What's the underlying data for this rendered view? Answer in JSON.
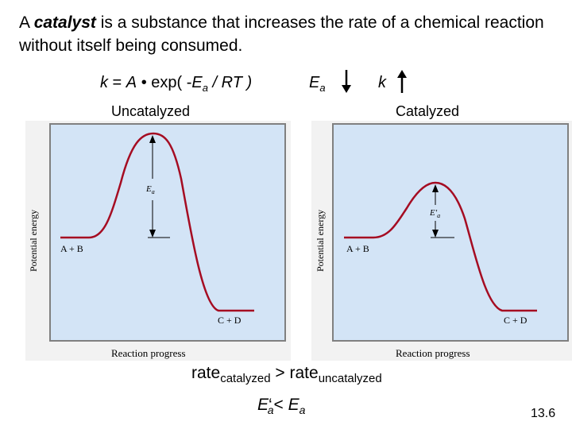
{
  "intro": {
    "prefix": "A ",
    "term": "catalyst",
    "suffix": " is a substance that increases the rate of a chemical reaction without itself being consumed."
  },
  "formula": {
    "lhs": "k",
    "eq": " = ",
    "a": "A",
    "dot": " • ",
    "exp_open": "exp( -",
    "e": "E",
    "e_sub": "a",
    "rest": " / RT )"
  },
  "trend": {
    "ea": "E",
    "ea_sub": "a",
    "ea_direction": "down-arrow",
    "k": "k",
    "k_direction": "up-arrow"
  },
  "panels": {
    "uncatalyzed": {
      "title": "Uncatalyzed",
      "y_axis": "Potential energy",
      "x_axis": "Reaction progress",
      "reactants": "A + B",
      "products": "C + D",
      "barrier_label": "E",
      "barrier_sub": "a"
    },
    "catalyzed": {
      "title": "Catalyzed",
      "y_axis": "Potential energy",
      "x_axis": "Reaction progress",
      "reactants": "A + B",
      "products": "C + D",
      "barrier_label": "E′",
      "barrier_sub": "a"
    }
  },
  "rate_comparison": {
    "left": "rate",
    "left_sub": "catalyzed",
    "op": " > ",
    "right": "rate",
    "right_sub": "uncatalyzed"
  },
  "ea_comparison": {
    "left": "E",
    "prime": "‘",
    "left_sub": "a",
    "op": "< ",
    "right": "E",
    "right_sub": "a"
  },
  "slide_number": "13.6",
  "colors": {
    "panel_fill": "#d3e4f6",
    "curve": "#a50c22",
    "panel_border": "#808080"
  }
}
